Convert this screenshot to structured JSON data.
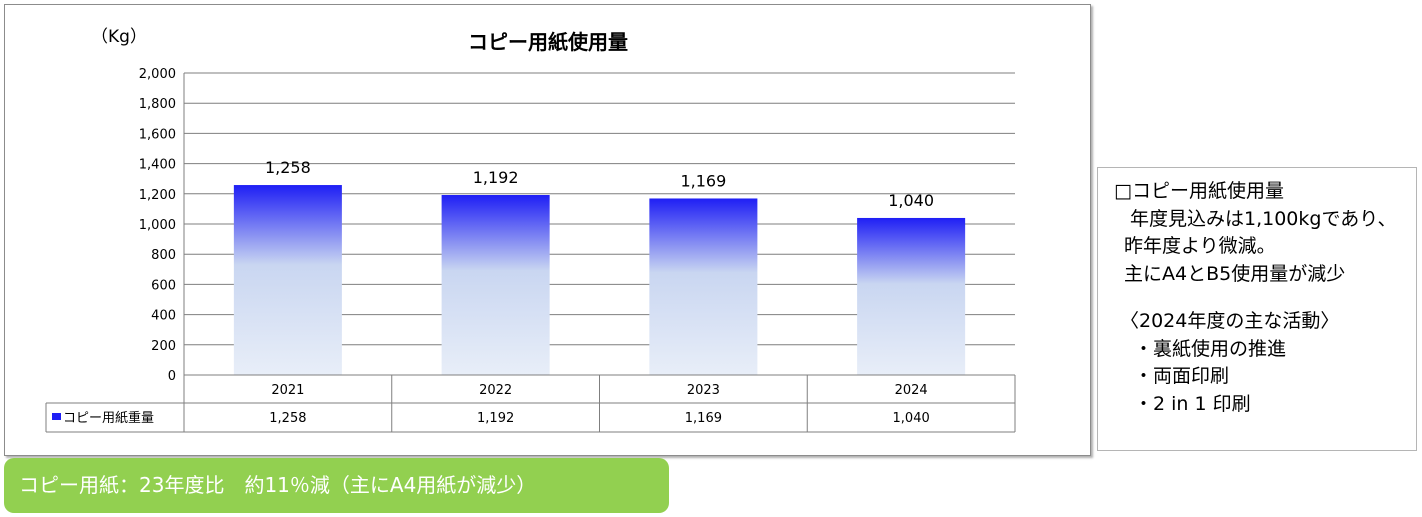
{
  "chart_data": {
    "type": "bar",
    "title": "コピー用紙使用量",
    "ylabel": "（Kg）",
    "ylim": [
      0,
      2000
    ],
    "yticks": [
      0,
      200,
      400,
      600,
      800,
      1000,
      1200,
      1400,
      1600,
      1800,
      2000
    ],
    "ytick_labels": [
      "0",
      "200",
      "400",
      "600",
      "800",
      "1,000",
      "1,200",
      "1,400",
      "1,600",
      "1,800",
      "2,000"
    ],
    "categories": [
      "2021",
      "2022",
      "2023",
      "2024"
    ],
    "series": [
      {
        "name": "コピー用紙重量",
        "values": [
          1258,
          1192,
          1169,
          1040
        ],
        "labels": [
          "1,258",
          "1,192",
          "1,169",
          "1,040"
        ],
        "color_top": "#1f1ff5",
        "color_bottom": "#e4ebf7"
      }
    ],
    "grid": true,
    "legend": "data-table-left"
  },
  "note": {
    "heading": "□コピー用紙使用量",
    "lines": [
      "年度見込みは1,100kgであり、",
      "昨年度より微減。",
      "主にA4とB5使用量が減少"
    ],
    "activities_title": "〈2024年度の主な活動〉",
    "activities": [
      "・裏紙使用の推進",
      "・両面印刷",
      "・2 in 1 印刷"
    ]
  },
  "summary": "コピー用紙：23年度比　約11％減（主にA4用紙が減少）",
  "colors": {
    "banner": "#92d050",
    "grid": "#7f7f7f",
    "bar_top": "#1f1ff5",
    "bar_bottom": "#e4ebf7"
  }
}
